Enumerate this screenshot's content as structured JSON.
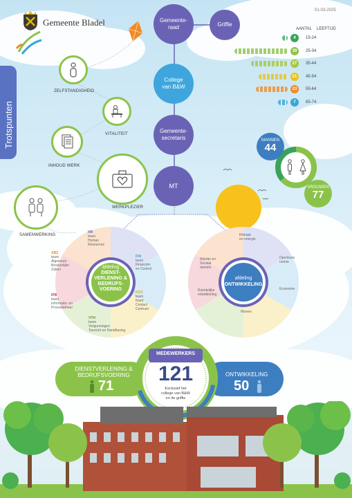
{
  "header": {
    "org_name": "Gemeente Bladel",
    "date": "01-03-2025",
    "section_tab": "Trotspunten"
  },
  "org_chart": {
    "gemeenteraad": "Gemeente-\nraad",
    "griffie": "Griffie",
    "college": "College\nvan B&W",
    "secretaris": "Gemeente-\nsecretaris",
    "mt": "MT"
  },
  "trotspunten": [
    {
      "label": "ZELFSTANDIGHEID",
      "icon": "person-icon"
    },
    {
      "label": "VITALITEIT",
      "icon": "desk-icon"
    },
    {
      "label": "INHOUD WERK",
      "icon": "documents-icon"
    },
    {
      "label": "WERKPLEZIER",
      "icon": "suitcase-heart-icon"
    },
    {
      "label": "SAMENWERKING",
      "icon": "two-people-icon"
    }
  ],
  "age_table": {
    "col_count": "AANTAL",
    "col_age": "LEEFTIJD",
    "rows": [
      {
        "count": "4",
        "range": "15-24",
        "color": "#3aa35b",
        "fill": 0.06
      },
      {
        "count": "39",
        "range": "25-34",
        "color": "#8bc34a",
        "fill": 0.55
      },
      {
        "count": "27",
        "range": "35-44",
        "color": "#a6c93b",
        "fill": 0.38
      },
      {
        "count": "21",
        "range": "45-54",
        "color": "#e8c219",
        "fill": 0.3
      },
      {
        "count": "23",
        "range": "55-64",
        "color": "#f08a24",
        "fill": 0.33
      },
      {
        "count": "7",
        "range": "65-74",
        "color": "#36a7d6",
        "fill": 0.1
      }
    ]
  },
  "gender": {
    "mannen_label": "MANNEN",
    "mannen_value": "44",
    "vrouwen_label": "VROUWEN",
    "vrouwen_value": "77",
    "vrouwen_fraction": 0.636
  },
  "dept_left": {
    "center_line1": "afdeling",
    "center_line2": "DIENST-",
    "center_line3": "VERLENING &",
    "center_line4": "BEDRIJFS-",
    "center_line5": "VOERING",
    "hr_code": "HR",
    "hr_text": "team\nHuman\nResources",
    "fin_code": "FIN",
    "fin_text": "team\nFinanciën\nen Control",
    "kcc_code": "KCC",
    "kcc_text": "team\nKlant\nContact\nCentrum",
    "vth_code": "VTH",
    "vth_text": "team\nVergunningen\nToezicht en Handhaving",
    "ipb_code": "IPB",
    "ipb_text": "team\nInformatie- en\nProcesbeheer",
    "abz_code": "ABZ",
    "abz_text": "team\nAlgemeen\nBestuurlijke\nZaken"
  },
  "dept_right": {
    "center_line1": "afdeling",
    "center_line2": "ONTWIKKELING",
    "klimaat": "Klimaat\nen energie",
    "ruimte": "Openbare\nruimte",
    "economie": "Economie",
    "wonen": "Wonen",
    "ruimtelijk": "Ruimtelijke\nontwikkeling",
    "welzijn": "Welzijn en\nSociaal\ndomein"
  },
  "totals": {
    "left_label1": "DIENSTVERLENING &",
    "left_label2": "BEDRIJFSVOERING",
    "left_value": "71",
    "center_label": "MEDEWERKERS",
    "center_value": "121",
    "center_note1": "Exclusief het",
    "center_note2": "college van B&W",
    "center_note3": "en de griffie",
    "right_label": "ONTWIKKELING",
    "right_value": "50"
  }
}
